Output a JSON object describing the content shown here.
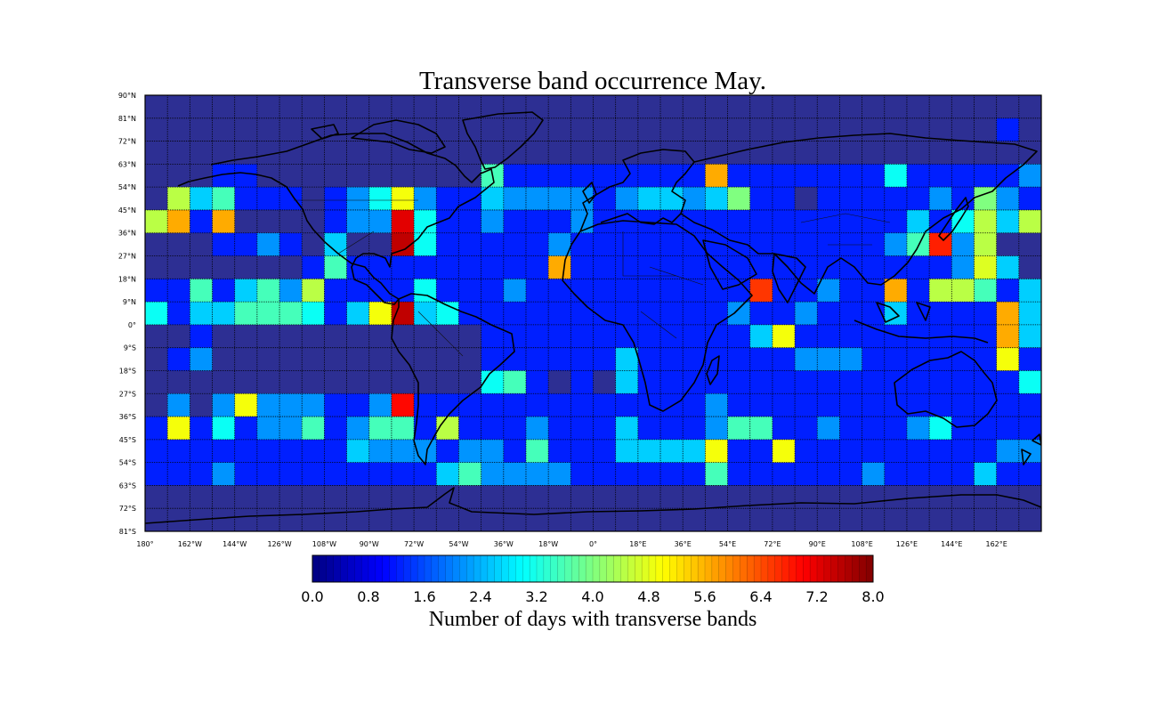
{
  "chart_data": {
    "type": "heatmap",
    "title": "Transverse band occurrence May.",
    "projection": "equirectangular",
    "lon_range": [
      -180,
      180
    ],
    "lat_range": [
      -81,
      90
    ],
    "grid_step_lon": 9,
    "grid_step_lat": 9,
    "lat_rows_north_to_south": [
      "81N-90N",
      "72N-81N",
      "63N-72N",
      "54N-63N",
      "45N-54N",
      "36N-45N",
      "27N-36N",
      "18N-27N",
      "9N-18N",
      "0-9N",
      "9S-0",
      "18S-9S",
      "27S-18S",
      "36S-27S",
      "45S-36S",
      "54S-45S",
      "63S-54S",
      "72S-63S",
      "81S-72S"
    ],
    "lon_columns": "40 columns of 9 degrees from 180W eastward",
    "values": [
      [
        0,
        0,
        0,
        0,
        0,
        0,
        0,
        0,
        0,
        0,
        0,
        0,
        0,
        0,
        0,
        0,
        0,
        0,
        0,
        0,
        0,
        0,
        0,
        0,
        0,
        0,
        0,
        0,
        0,
        0,
        0,
        0,
        0,
        0,
        0,
        0,
        0,
        0,
        0,
        0
      ],
      [
        0,
        0,
        0,
        0,
        0,
        0,
        0,
        0,
        0,
        0,
        0,
        0,
        0,
        0,
        0,
        0,
        0,
        0,
        0,
        0,
        0,
        0,
        0,
        0,
        0,
        0,
        0,
        0,
        0,
        0,
        0,
        0,
        0,
        0,
        0,
        0,
        0,
        0,
        1,
        0
      ],
      [
        0,
        0,
        0,
        0,
        0,
        0,
        0,
        0,
        0,
        0,
        0,
        0,
        0,
        0,
        0,
        0,
        0,
        0,
        0,
        0,
        0,
        0,
        0,
        0,
        0,
        0,
        0,
        0,
        0,
        0,
        0,
        0,
        0,
        0,
        0,
        0,
        0,
        0,
        0,
        0
      ],
      [
        0,
        0,
        0,
        1,
        1,
        0,
        0,
        0,
        0,
        0,
        0,
        0,
        0,
        0,
        0,
        3.5,
        1,
        1,
        1,
        1,
        1,
        1,
        1,
        1,
        1,
        5.8,
        1,
        1,
        1,
        1,
        1,
        1,
        1,
        3,
        1,
        1,
        1,
        1,
        1,
        2
      ],
      [
        0,
        4.5,
        2.5,
        3.5,
        1,
        1,
        1,
        0,
        1,
        2,
        3,
        5,
        2,
        1,
        1,
        2.5,
        2,
        2,
        2,
        2,
        1,
        2,
        2.5,
        2.5,
        2,
        2.5,
        4,
        1,
        1,
        0,
        1,
        1,
        1,
        1,
        1,
        2,
        1,
        4,
        2,
        1
      ],
      [
        4.5,
        5.8,
        1,
        5.8,
        0,
        0,
        0,
        0,
        1,
        2,
        2,
        7.5,
        3,
        1,
        1,
        2,
        1,
        1,
        1,
        2,
        1,
        1,
        1,
        1,
        1,
        1,
        1,
        1,
        1,
        1,
        1,
        1,
        1,
        1,
        2.5,
        1,
        3,
        4.5,
        2.5,
        4.5
      ],
      [
        0,
        0,
        0,
        1,
        1,
        2,
        1,
        0,
        2.5,
        0,
        0,
        7.8,
        3,
        1,
        1,
        1,
        1,
        1,
        2,
        1,
        1,
        1,
        1,
        1,
        1,
        1,
        1,
        1,
        1,
        1,
        1,
        1,
        1,
        2,
        3.5,
        7,
        2,
        4.5,
        0,
        0
      ],
      [
        0,
        0,
        0,
        0,
        0,
        0,
        0,
        1,
        3.5,
        1,
        1,
        1,
        1,
        1,
        1,
        1,
        1,
        1,
        5.8,
        1,
        1,
        1,
        1,
        1,
        1,
        1,
        1,
        1,
        1,
        1,
        1,
        1,
        1,
        1,
        1,
        1,
        2,
        4.8,
        2.5,
        0
      ],
      [
        1,
        1,
        3.5,
        1,
        2.5,
        3.5,
        2,
        4.5,
        1,
        1,
        1,
        1,
        3,
        1,
        1,
        1,
        2,
        1,
        1,
        1,
        1,
        1,
        1,
        1,
        1,
        1,
        1,
        6.8,
        1,
        1,
        2,
        1,
        1,
        5.8,
        1,
        4.5,
        4.5,
        3.5,
        1,
        2.5
      ],
      [
        3,
        1,
        2.5,
        2.5,
        3.5,
        3.5,
        3.5,
        3,
        1,
        2.5,
        5,
        7.8,
        2.5,
        3,
        1,
        1,
        1,
        1,
        1,
        1,
        1,
        1,
        1,
        1,
        1,
        1,
        2,
        1,
        1,
        2,
        1,
        1,
        1,
        2.5,
        1,
        1,
        1,
        1,
        5.8,
        2.5
      ],
      [
        0,
        0,
        1,
        0,
        0,
        0,
        0,
        0,
        0,
        0,
        0,
        0,
        0,
        0,
        0,
        1,
        1,
        1,
        1,
        1,
        1,
        1,
        1,
        1,
        1,
        1,
        1,
        2.5,
        5,
        1,
        1,
        1,
        1,
        1,
        1,
        1,
        1,
        1,
        5.8,
        2.5
      ],
      [
        0,
        1,
        2,
        0,
        0,
        0,
        0,
        0,
        0,
        0,
        0,
        0,
        0,
        0,
        0,
        1,
        1,
        1,
        1,
        1,
        1,
        2.5,
        1,
        1,
        1,
        1,
        1,
        1,
        1,
        2,
        2,
        2,
        1,
        1,
        1,
        1,
        1,
        1,
        5,
        1
      ],
      [
        0,
        0,
        0,
        0,
        0,
        0,
        0,
        0,
        0,
        0,
        0,
        0,
        0,
        0,
        0,
        3,
        3.5,
        1,
        0,
        1,
        0,
        2.5,
        1,
        1,
        1,
        1,
        1,
        1,
        1,
        1,
        1,
        1,
        1,
        1,
        1,
        1,
        1,
        1,
        1,
        3
      ],
      [
        0,
        2,
        0,
        2,
        5,
        2,
        2,
        2,
        1,
        1,
        2,
        7.2,
        1,
        1,
        1,
        1,
        1,
        1,
        1,
        1,
        1,
        1,
        1,
        1,
        1,
        2,
        1,
        1,
        1,
        1,
        1,
        1,
        1,
        1,
        1,
        1,
        1,
        1,
        1,
        1
      ],
      [
        1,
        5,
        1,
        3,
        1,
        2,
        2,
        3.5,
        1,
        2,
        3.5,
        3.5,
        1,
        4.5,
        1,
        1,
        1,
        2,
        1,
        1,
        1,
        2.5,
        1,
        1,
        1,
        2,
        3.5,
        3.5,
        1,
        1,
        2,
        1,
        1,
        1,
        2,
        3,
        1,
        1,
        1,
        1
      ],
      [
        1,
        1,
        1,
        1,
        1,
        1,
        1,
        1,
        1,
        2.5,
        2,
        2,
        2,
        1,
        2,
        2,
        1,
        3.5,
        1,
        1,
        1,
        2.5,
        2.5,
        2.5,
        2.5,
        5,
        1,
        1,
        5,
        1,
        1,
        1,
        1,
        1,
        1,
        1,
        1,
        1,
        2,
        2
      ],
      [
        1,
        1,
        1,
        2,
        1,
        1,
        1,
        1,
        1,
        1,
        1,
        1,
        1,
        2.5,
        3.5,
        2,
        2,
        2,
        2,
        1,
        1,
        1,
        1,
        1,
        1,
        3.5,
        1,
        1,
        1,
        1,
        1,
        1,
        2,
        1,
        1,
        1,
        1,
        2.5,
        1,
        1
      ],
      [
        0,
        0,
        0,
        0,
        0,
        0,
        0,
        0,
        0,
        0,
        0,
        0,
        0,
        0,
        0,
        0,
        0,
        0,
        0,
        0,
        0,
        0,
        0,
        0,
        0,
        0,
        0,
        0,
        0,
        0,
        0,
        0,
        0,
        0,
        0,
        0,
        0,
        0,
        0,
        0
      ],
      [
        0,
        0,
        0,
        0,
        0,
        0,
        0,
        0,
        0,
        0,
        0,
        0,
        0,
        0,
        0,
        0,
        0,
        0,
        0,
        0,
        0,
        0,
        0,
        0,
        0,
        0,
        0,
        0,
        0,
        0,
        0,
        0,
        0,
        0,
        0,
        0,
        0,
        0,
        0,
        0
      ]
    ],
    "color_scale": {
      "colormap": "jet",
      "min": 0.0,
      "max": 8.0,
      "ticks": [
        "0.0",
        "0.8",
        "1.6",
        "2.4",
        "3.2",
        "4.0",
        "4.8",
        "5.6",
        "6.4",
        "7.2",
        "8.0"
      ],
      "label": "Number of days with transverse bands"
    },
    "lat_tick_labels": [
      "90°N",
      "81°N",
      "72°N",
      "63°N",
      "54°N",
      "45°N",
      "36°N",
      "27°N",
      "18°N",
      "9°N",
      "0°",
      "9°S",
      "18°S",
      "27°S",
      "36°S",
      "45°S",
      "54°S",
      "63°S",
      "72°S",
      "81°S"
    ],
    "lon_tick_labels": [
      "180°",
      "162°W",
      "144°W",
      "126°W",
      "108°W",
      "90°W",
      "72°W",
      "54°W",
      "36°W",
      "18°W",
      "0°",
      "18°E",
      "36°E",
      "54°E",
      "72°E",
      "90°E",
      "108°E",
      "126°E",
      "144°E",
      "162°E"
    ]
  }
}
